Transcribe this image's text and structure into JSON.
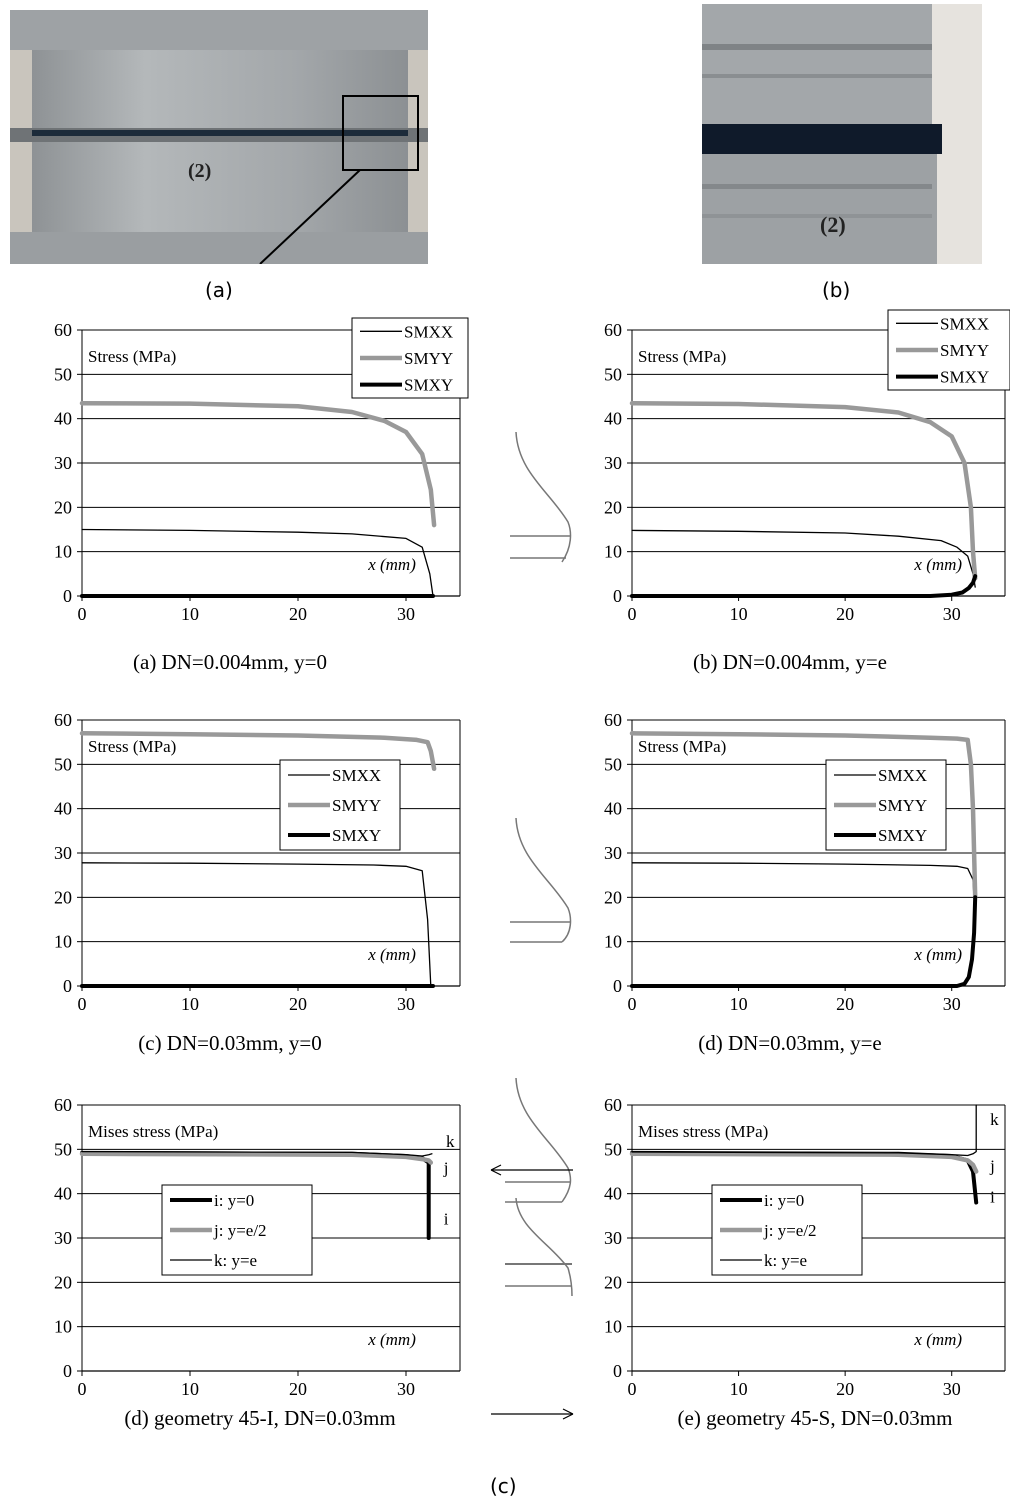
{
  "photos": {
    "a": {
      "label": "(a)",
      "number_marker": "(2)"
    },
    "b": {
      "label": "(b)",
      "number_marker": "(2)"
    },
    "c_label": "(c)"
  },
  "colors": {
    "smxx": "#000000",
    "smyy": "#999999",
    "smxy": "#000000",
    "grid": "#000000",
    "photo_metal": "#a9adb0"
  },
  "chart_data": [
    {
      "id": "chart-a",
      "type": "line",
      "caption": "(a) DN=0.004mm, y=0",
      "annotation": "Stress (MPa)",
      "xlabel": "x (mm)",
      "ylim": [
        0,
        60
      ],
      "xlim": [
        0,
        35
      ],
      "yticks": [
        0,
        10,
        20,
        30,
        40,
        50,
        60
      ],
      "xticks": [
        0,
        10,
        20,
        30
      ],
      "grid": "horizontal",
      "legend": "top-right",
      "series": [
        {
          "name": "SMXX",
          "x": [
            0,
            10,
            20,
            25,
            30,
            31.5,
            32.2,
            32.5
          ],
          "y": [
            15,
            14.8,
            14.4,
            14,
            13,
            11,
            5,
            0
          ],
          "style": "thin"
        },
        {
          "name": "SMYY",
          "x": [
            0,
            10,
            20,
            25,
            28,
            30,
            31.5,
            32.3,
            32.6
          ],
          "y": [
            43.5,
            43.4,
            42.8,
            41.5,
            39.5,
            37,
            32,
            24,
            16
          ],
          "style": "thick-gray"
        },
        {
          "name": "SMXY",
          "x": [
            0,
            32.5
          ],
          "y": [
            0,
            0
          ],
          "style": "thick-black"
        }
      ]
    },
    {
      "id": "chart-b",
      "type": "line",
      "caption": "(b) DN=0.004mm, y=e",
      "annotation": "Stress (MPa)",
      "xlabel": "x (mm)",
      "ylim": [
        0,
        60
      ],
      "xlim": [
        0,
        35
      ],
      "yticks": [
        0,
        10,
        20,
        30,
        40,
        50,
        60
      ],
      "xticks": [
        0,
        10,
        20,
        30
      ],
      "grid": "horizontal",
      "legend": "top-right",
      "series": [
        {
          "name": "SMXX",
          "x": [
            0,
            10,
            20,
            25,
            29,
            30.5,
            31.5,
            32,
            32.2
          ],
          "y": [
            14.8,
            14.6,
            14.2,
            13.5,
            12.5,
            11,
            9,
            5,
            2
          ],
          "style": "thin"
        },
        {
          "name": "SMYY",
          "x": [
            0,
            10,
            20,
            25,
            28,
            30,
            31.2,
            31.8,
            32,
            32.2
          ],
          "y": [
            43.5,
            43.3,
            42.6,
            41.4,
            39.2,
            36,
            30,
            20,
            10,
            4
          ],
          "style": "thick-gray"
        },
        {
          "name": "SMXY",
          "x": [
            0,
            28,
            30,
            31,
            31.6,
            32,
            32.2
          ],
          "y": [
            0,
            0,
            0.3,
            0.8,
            1.8,
            3,
            4.5
          ],
          "style": "thick-black"
        }
      ]
    },
    {
      "id": "chart-c",
      "type": "line",
      "caption": "(c) DN=0.03mm, y=0",
      "annotation": "Stress (MPa)",
      "xlabel": "x (mm)",
      "ylim": [
        0,
        60
      ],
      "xlim": [
        0,
        35
      ],
      "yticks": [
        0,
        10,
        20,
        30,
        40,
        50,
        60
      ],
      "xticks": [
        0,
        10,
        20,
        30
      ],
      "grid": "horizontal",
      "legend": "middle-right",
      "series": [
        {
          "name": "SMXX",
          "x": [
            0,
            10,
            20,
            27,
            30,
            31.5,
            32,
            32.3
          ],
          "y": [
            27.8,
            27.7,
            27.5,
            27.3,
            27,
            26,
            15,
            0
          ],
          "style": "thin"
        },
        {
          "name": "SMYY",
          "x": [
            0,
            10,
            20,
            28,
            31,
            32,
            32.3,
            32.6
          ],
          "y": [
            57,
            56.8,
            56.5,
            56,
            55.5,
            55,
            53,
            49
          ],
          "style": "thick-gray"
        },
        {
          "name": "SMXY",
          "x": [
            0,
            32.5
          ],
          "y": [
            0,
            0
          ],
          "style": "thick-black"
        }
      ]
    },
    {
      "id": "chart-d",
      "type": "line",
      "caption": "(d) DN=0.03mm, y=e",
      "annotation": "Stress (MPa)",
      "xlabel": "x (mm)",
      "ylim": [
        0,
        60
      ],
      "xlim": [
        0,
        35
      ],
      "yticks": [
        0,
        10,
        20,
        30,
        40,
        50,
        60
      ],
      "xticks": [
        0,
        10,
        20,
        30
      ],
      "grid": "horizontal",
      "legend": "middle-right",
      "series": [
        {
          "name": "SMXX",
          "x": [
            0,
            10,
            20,
            28,
            30.5,
            31.5,
            32,
            32.2
          ],
          "y": [
            27.8,
            27.7,
            27.5,
            27.2,
            27,
            26.5,
            24,
            15
          ],
          "style": "thin"
        },
        {
          "name": "SMYY",
          "x": [
            0,
            10,
            20,
            28,
            30.5,
            31.5,
            31.8,
            32,
            32.2
          ],
          "y": [
            57,
            56.8,
            56.5,
            56,
            55.8,
            55.5,
            50,
            40,
            20
          ],
          "style": "thick-gray"
        },
        {
          "name": "SMXY",
          "x": [
            0,
            30.5,
            31.2,
            31.6,
            31.9,
            32.1,
            32.2
          ],
          "y": [
            0,
            0,
            0.5,
            2,
            6,
            12,
            20
          ],
          "style": "thick-black"
        }
      ]
    },
    {
      "id": "chart-e",
      "type": "line",
      "caption": "(d) geometry 45-I, DN=0.03mm",
      "annotation": "Mises stress (MPa)",
      "xlabel": "x (mm)",
      "ylim": [
        0,
        60
      ],
      "xlim": [
        0,
        35
      ],
      "yticks": [
        0,
        10,
        20,
        30,
        40,
        50,
        60
      ],
      "xticks": [
        0,
        10,
        20,
        30
      ],
      "grid": "horizontal",
      "legend": "middle-left",
      "curve_labels": [
        "k",
        "j",
        "i"
      ],
      "series": [
        {
          "name": "i: y=0",
          "x": [
            0,
            25,
            30,
            31.5,
            32.1,
            32.1
          ],
          "y": [
            49.2,
            49,
            48.5,
            48,
            47,
            30
          ],
          "style": "thick-black"
        },
        {
          "name": "j: y=e/2",
          "x": [
            0,
            25,
            30,
            31.5,
            32.1,
            32.3
          ],
          "y": [
            49,
            48.8,
            48.3,
            47.8,
            47.5,
            47
          ],
          "style": "thick-gray"
        },
        {
          "name": "k: y=e",
          "x": [
            0,
            25,
            30,
            31.5,
            32.1,
            32.4
          ],
          "y": [
            49.5,
            49.3,
            48.8,
            48.5,
            48.8,
            49
          ],
          "style": "thin"
        }
      ]
    },
    {
      "id": "chart-f",
      "type": "line",
      "caption": "(e) geometry 45-S, DN=0.03mm",
      "annotation": "Mises stress (MPa)",
      "xlabel": "x (mm)",
      "ylim": [
        0,
        60
      ],
      "xlim": [
        0,
        35
      ],
      "yticks": [
        0,
        10,
        20,
        30,
        40,
        50,
        60
      ],
      "xticks": [
        0,
        10,
        20,
        30
      ],
      "grid": "horizontal",
      "legend": "middle-center",
      "curve_labels": [
        "k",
        "j",
        "i"
      ],
      "series": [
        {
          "name": "i: y=0",
          "x": [
            0,
            25,
            30,
            31.5,
            32,
            32.3
          ],
          "y": [
            49.2,
            49,
            48.5,
            47.5,
            45,
            38
          ],
          "style": "thick-black"
        },
        {
          "name": "j: y=e/2",
          "x": [
            0,
            25,
            30,
            31.5,
            32,
            32.3
          ],
          "y": [
            49,
            48.8,
            48.3,
            47.5,
            46.5,
            45
          ],
          "style": "thick-gray"
        },
        {
          "name": "k: y=e",
          "x": [
            0,
            25,
            30,
            31.5,
            32,
            32.3,
            32.3
          ],
          "y": [
            49.4,
            49.2,
            48.8,
            48.6,
            49,
            49.5,
            60
          ],
          "style": "thin"
        }
      ]
    }
  ]
}
